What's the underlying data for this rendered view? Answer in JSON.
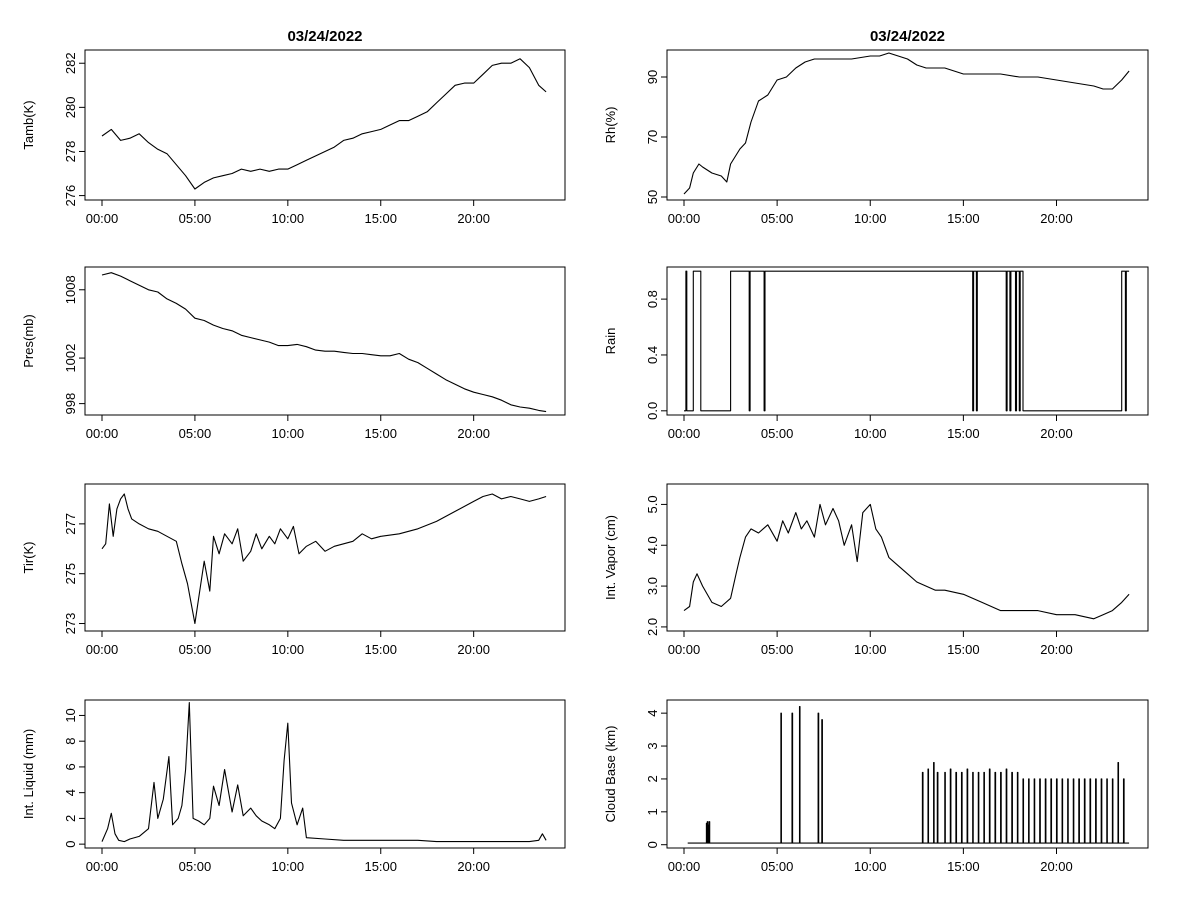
{
  "chart_data": [
    {
      "type": "line",
      "title": "03/24/2022",
      "ylabel": "Tamb(K)",
      "xticks": [
        "00:00",
        "05:00",
        "10:00",
        "15:00",
        "20:00"
      ],
      "yticks": [
        "276",
        "278",
        "280",
        "282"
      ],
      "xlim": [
        0,
        24
      ],
      "ylim": [
        275.8,
        282.6
      ],
      "x": [
        0.0,
        0.5,
        1.0,
        1.5,
        2.0,
        2.5,
        3.0,
        3.5,
        4.0,
        4.5,
        5.0,
        5.5,
        6.0,
        6.5,
        7.0,
        7.5,
        8.0,
        8.5,
        9.0,
        9.5,
        10.0,
        10.5,
        11.0,
        11.5,
        12.0,
        12.5,
        13.0,
        13.5,
        14.0,
        14.5,
        15.0,
        15.5,
        16.0,
        16.5,
        17.0,
        17.5,
        18.0,
        18.5,
        19.0,
        19.5,
        20.0,
        20.5,
        21.0,
        21.5,
        22.0,
        22.5,
        23.0,
        23.5,
        23.9
      ],
      "y": [
        278.7,
        279.0,
        278.5,
        278.6,
        278.8,
        278.4,
        278.1,
        277.9,
        277.4,
        276.9,
        276.3,
        276.6,
        276.8,
        276.9,
        277.0,
        277.2,
        277.1,
        277.2,
        277.1,
        277.2,
        277.2,
        277.4,
        277.6,
        277.8,
        278.0,
        278.2,
        278.5,
        278.6,
        278.8,
        278.9,
        279.0,
        279.2,
        279.4,
        279.4,
        279.6,
        279.8,
        280.2,
        280.6,
        281.0,
        281.1,
        281.1,
        281.5,
        281.9,
        282.0,
        282.0,
        282.2,
        281.8,
        281.0,
        280.7
      ]
    },
    {
      "type": "line",
      "title": "03/24/2022",
      "ylabel": "Rh(%)",
      "xticks": [
        "00:00",
        "05:00",
        "10:00",
        "15:00",
        "20:00"
      ],
      "yticks": [
        "50",
        "70",
        "90"
      ],
      "xlim": [
        0,
        24
      ],
      "ylim": [
        49,
        99
      ],
      "x": [
        0.0,
        0.3,
        0.5,
        0.8,
        1.0,
        1.5,
        2.0,
        2.3,
        2.5,
        3.0,
        3.3,
        3.6,
        4.0,
        4.5,
        5.0,
        5.5,
        6.0,
        6.5,
        7.0,
        7.5,
        8.0,
        9.0,
        10.0,
        10.5,
        11.0,
        11.5,
        12.0,
        12.5,
        13.0,
        14.0,
        15.0,
        16.0,
        17.0,
        18.0,
        19.0,
        20.0,
        21.0,
        22.0,
        22.5,
        23.0,
        23.5,
        23.9
      ],
      "y": [
        51,
        53,
        58,
        61,
        60,
        58,
        57,
        55,
        61,
        66,
        68,
        75,
        82,
        84,
        89,
        90,
        93,
        95,
        96,
        96,
        96,
        96,
        97,
        97,
        98,
        97,
        96,
        94,
        93,
        93,
        91,
        91,
        91,
        90,
        90,
        89,
        88,
        87,
        86,
        86,
        89,
        92
      ]
    },
    {
      "type": "line",
      "ylabel": "Pres(mb)",
      "xticks": [
        "00:00",
        "05:00",
        "10:00",
        "15:00",
        "20:00"
      ],
      "yticks": [
        "998",
        "1002",
        "1008"
      ],
      "xlim": [
        0,
        24
      ],
      "ylim": [
        997,
        1010
      ],
      "x": [
        0.0,
        0.5,
        1.0,
        1.5,
        2.0,
        2.5,
        3.0,
        3.5,
        4.0,
        4.5,
        5.0,
        5.5,
        6.0,
        6.5,
        7.0,
        7.5,
        8.0,
        8.5,
        9.0,
        9.5,
        10.0,
        10.5,
        11.0,
        11.5,
        12.0,
        12.5,
        13.0,
        13.5,
        14.0,
        14.5,
        15.0,
        15.5,
        16.0,
        16.5,
        17.0,
        17.5,
        18.0,
        18.5,
        19.0,
        19.5,
        20.0,
        20.5,
        21.0,
        21.5,
        22.0,
        22.5,
        23.0,
        23.5,
        23.9
      ],
      "y": [
        1009.3,
        1009.5,
        1009.2,
        1008.8,
        1008.4,
        1008.0,
        1007.8,
        1007.2,
        1006.8,
        1006.3,
        1005.5,
        1005.3,
        1004.9,
        1004.6,
        1004.4,
        1004.0,
        1003.8,
        1003.6,
        1003.4,
        1003.1,
        1003.1,
        1003.2,
        1003.0,
        1002.7,
        1002.6,
        1002.6,
        1002.5,
        1002.4,
        1002.4,
        1002.3,
        1002.2,
        1002.2,
        1002.4,
        1001.9,
        1001.6,
        1001.1,
        1000.6,
        1000.1,
        999.7,
        999.3,
        999.0,
        998.8,
        998.6,
        998.3,
        997.9,
        997.7,
        997.6,
        997.4,
        997.3
      ]
    },
    {
      "type": "line",
      "ylabel": "Rain",
      "xticks": [
        "00:00",
        "05:00",
        "10:00",
        "15:00",
        "20:00"
      ],
      "yticks": [
        "0.0",
        "0.4",
        "0.8"
      ],
      "xlim": [
        0,
        24
      ],
      "ylim": [
        -0.03,
        1.03
      ],
      "segments": [
        [
          0.0,
          0.1,
          0
        ],
        [
          0.1,
          0.15,
          1
        ],
        [
          0.15,
          0.5,
          0
        ],
        [
          0.5,
          0.9,
          1
        ],
        [
          0.9,
          2.5,
          0
        ],
        [
          2.5,
          3.5,
          1
        ],
        [
          3.5,
          3.55,
          0
        ],
        [
          3.55,
          4.3,
          1
        ],
        [
          4.3,
          4.35,
          0
        ],
        [
          4.35,
          15.5,
          1
        ],
        [
          15.5,
          15.55,
          0
        ],
        [
          15.55,
          15.7,
          1
        ],
        [
          15.7,
          15.75,
          0
        ],
        [
          15.75,
          17.3,
          1
        ],
        [
          17.3,
          17.35,
          0
        ],
        [
          17.35,
          17.5,
          1
        ],
        [
          17.5,
          17.55,
          0
        ],
        [
          17.55,
          17.8,
          1
        ],
        [
          17.8,
          17.85,
          0
        ],
        [
          17.85,
          18.0,
          1
        ],
        [
          18.0,
          18.05,
          0
        ],
        [
          18.05,
          18.2,
          1
        ],
        [
          18.2,
          18.25,
          0
        ],
        [
          18.25,
          23.5,
          0
        ],
        [
          23.5,
          23.55,
          1
        ],
        [
          23.55,
          23.7,
          1
        ],
        [
          23.7,
          23.75,
          0
        ],
        [
          23.75,
          23.9,
          1
        ]
      ]
    },
    {
      "type": "line",
      "ylabel": "Tir(K)",
      "xticks": [
        "00:00",
        "05:00",
        "10:00",
        "15:00",
        "20:00"
      ],
      "yticks": [
        "273",
        "275",
        "277"
      ],
      "xlim": [
        0,
        24
      ],
      "ylim": [
        272.7,
        278.6
      ],
      "x": [
        0.0,
        0.2,
        0.4,
        0.6,
        0.8,
        1.0,
        1.2,
        1.4,
        1.6,
        2.0,
        2.5,
        3.0,
        3.5,
        4.0,
        4.3,
        4.6,
        4.8,
        5.0,
        5.2,
        5.5,
        5.8,
        6.0,
        6.3,
        6.6,
        7.0,
        7.3,
        7.6,
        8.0,
        8.3,
        8.6,
        9.0,
        9.3,
        9.6,
        10.0,
        10.3,
        10.6,
        11.0,
        11.5,
        12.0,
        12.5,
        13.0,
        13.5,
        14.0,
        14.5,
        15.0,
        16.0,
        17.0,
        18.0,
        19.0,
        20.0,
        20.5,
        21.0,
        21.5,
        22.0,
        22.5,
        23.0,
        23.5,
        23.9
      ],
      "y": [
        276.0,
        276.2,
        277.8,
        276.5,
        277.6,
        278.0,
        278.2,
        277.6,
        277.2,
        277.0,
        276.8,
        276.7,
        276.5,
        276.3,
        275.4,
        274.6,
        273.8,
        273.0,
        274.0,
        275.5,
        274.3,
        276.5,
        275.8,
        276.6,
        276.2,
        276.8,
        275.5,
        275.9,
        276.6,
        276.0,
        276.5,
        276.2,
        276.8,
        276.4,
        276.9,
        275.8,
        276.1,
        276.3,
        275.9,
        276.1,
        276.2,
        276.3,
        276.6,
        276.4,
        276.5,
        276.6,
        276.8,
        277.1,
        277.5,
        277.9,
        278.1,
        278.2,
        278.0,
        278.1,
        278.0,
        277.9,
        278.0,
        278.1
      ]
    },
    {
      "type": "line",
      "ylabel": "Int. Vapor (cm)",
      "xticks": [
        "00:00",
        "05:00",
        "10:00",
        "15:00",
        "20:00"
      ],
      "yticks": [
        "2.0",
        "3.0",
        "4.0",
        "5.0"
      ],
      "xlim": [
        0,
        24
      ],
      "ylim": [
        1.9,
        5.5
      ],
      "x": [
        0.0,
        0.3,
        0.5,
        0.7,
        1.0,
        1.5,
        2.0,
        2.5,
        2.8,
        3.0,
        3.3,
        3.6,
        4.0,
        4.5,
        5.0,
        5.3,
        5.6,
        6.0,
        6.3,
        6.6,
        7.0,
        7.3,
        7.6,
        8.0,
        8.3,
        8.6,
        9.0,
        9.3,
        9.6,
        10.0,
        10.3,
        10.6,
        11.0,
        11.5,
        12.0,
        12.5,
        13.0,
        13.5,
        14.0,
        15.0,
        16.0,
        17.0,
        18.0,
        19.0,
        20.0,
        21.0,
        22.0,
        22.5,
        23.0,
        23.5,
        23.9
      ],
      "y": [
        2.4,
        2.5,
        3.1,
        3.3,
        3.0,
        2.6,
        2.5,
        2.7,
        3.3,
        3.7,
        4.2,
        4.4,
        4.3,
        4.5,
        4.1,
        4.6,
        4.3,
        4.8,
        4.4,
        4.6,
        4.2,
        5.0,
        4.5,
        4.9,
        4.6,
        4.0,
        4.5,
        3.6,
        4.8,
        5.0,
        4.4,
        4.2,
        3.7,
        3.5,
        3.3,
        3.1,
        3.0,
        2.9,
        2.9,
        2.8,
        2.6,
        2.4,
        2.4,
        2.4,
        2.3,
        2.3,
        2.2,
        2.3,
        2.4,
        2.6,
        2.8
      ]
    },
    {
      "type": "line",
      "ylabel": "Int. Liquid (mm)",
      "xticks": [
        "00:00",
        "05:00",
        "10:00",
        "15:00",
        "20:00"
      ],
      "yticks": [
        "0",
        "2",
        "4",
        "6",
        "8",
        "10"
      ],
      "xlim": [
        0,
        24
      ],
      "ylim": [
        -0.3,
        11.2
      ],
      "x": [
        0.0,
        0.3,
        0.5,
        0.7,
        0.9,
        1.2,
        1.5,
        2.0,
        2.5,
        2.8,
        3.0,
        3.3,
        3.6,
        3.8,
        4.1,
        4.3,
        4.5,
        4.7,
        4.9,
        5.2,
        5.5,
        5.8,
        6.0,
        6.3,
        6.6,
        7.0,
        7.3,
        7.6,
        8.0,
        8.3,
        8.6,
        9.0,
        9.3,
        9.6,
        9.8,
        10.0,
        10.2,
        10.5,
        10.8,
        11.0,
        12.0,
        13.0,
        14.0,
        15.0,
        16.0,
        17.0,
        18.0,
        19.0,
        20.0,
        21.0,
        22.0,
        23.0,
        23.5,
        23.7,
        23.9
      ],
      "y": [
        0.2,
        1.2,
        2.4,
        0.8,
        0.3,
        0.2,
        0.4,
        0.6,
        1.2,
        4.8,
        2.0,
        3.5,
        6.8,
        1.5,
        2.0,
        3.0,
        5.8,
        11.0,
        2.0,
        1.8,
        1.5,
        2.0,
        4.5,
        3.0,
        5.8,
        2.5,
        4.6,
        2.2,
        2.8,
        2.2,
        1.8,
        1.5,
        1.2,
        2.0,
        6.5,
        9.4,
        3.2,
        1.5,
        2.8,
        0.5,
        0.4,
        0.3,
        0.3,
        0.3,
        0.3,
        0.3,
        0.2,
        0.2,
        0.2,
        0.2,
        0.2,
        0.2,
        0.3,
        0.8,
        0.3
      ]
    },
    {
      "type": "line",
      "ylabel": "Cloud Base (km)",
      "xticks": [
        "00:00",
        "05:00",
        "10:00",
        "15:00",
        "20:00"
      ],
      "yticks": [
        "0",
        "1",
        "2",
        "3",
        "4"
      ],
      "xlim": [
        0,
        24
      ],
      "ylim": [
        -0.1,
        4.4
      ],
      "spikes": [
        [
          1.2,
          0.65
        ],
        [
          1.25,
          0.7
        ],
        [
          1.3,
          0.6
        ],
        [
          1.35,
          0.7
        ],
        [
          5.2,
          4.0
        ],
        [
          5.8,
          4.0
        ],
        [
          6.2,
          4.2
        ],
        [
          7.2,
          4.0
        ],
        [
          7.4,
          3.8
        ],
        [
          12.8,
          2.2
        ],
        [
          13.1,
          2.3
        ],
        [
          13.4,
          2.5
        ],
        [
          13.6,
          2.2
        ],
        [
          14.0,
          2.2
        ],
        [
          14.3,
          2.3
        ],
        [
          14.6,
          2.2
        ],
        [
          14.9,
          2.2
        ],
        [
          15.2,
          2.3
        ],
        [
          15.5,
          2.2
        ],
        [
          15.8,
          2.2
        ],
        [
          16.1,
          2.2
        ],
        [
          16.4,
          2.3
        ],
        [
          16.7,
          2.2
        ],
        [
          17.0,
          2.2
        ],
        [
          17.3,
          2.3
        ],
        [
          17.6,
          2.2
        ],
        [
          17.9,
          2.2
        ],
        [
          18.2,
          2.0
        ],
        [
          18.5,
          2.0
        ],
        [
          18.8,
          2.0
        ],
        [
          19.1,
          2.0
        ],
        [
          19.4,
          2.0
        ],
        [
          19.7,
          2.0
        ],
        [
          20.0,
          2.0
        ],
        [
          20.3,
          2.0
        ],
        [
          20.6,
          2.0
        ],
        [
          20.9,
          2.0
        ],
        [
          21.2,
          2.0
        ],
        [
          21.5,
          2.0
        ],
        [
          21.8,
          2.0
        ],
        [
          22.1,
          2.0
        ],
        [
          22.4,
          2.0
        ],
        [
          22.7,
          2.0
        ],
        [
          23.0,
          2.0
        ],
        [
          23.3,
          2.5
        ],
        [
          23.6,
          2.0
        ]
      ]
    }
  ]
}
